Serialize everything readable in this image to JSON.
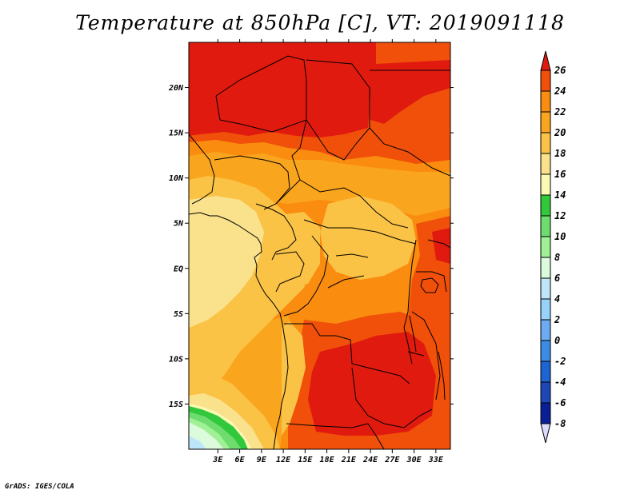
{
  "title": "Temperature at 850hPa [C], VT: 2019091118",
  "credit": "GrADS: IGES/COLA",
  "map": {
    "lon_range": [
      -1,
      35
    ],
    "lat_range": [
      -20,
      25
    ],
    "x_ticks": [
      "3E",
      "6E",
      "9E",
      "12E",
      "15E",
      "18E",
      "21E",
      "24E",
      "27E",
      "30E",
      "33E"
    ],
    "x_tick_values": [
      3,
      6,
      9,
      12,
      15,
      18,
      21,
      24,
      27,
      30,
      33
    ],
    "y_ticks": [
      "20N",
      "15N",
      "10N",
      "5N",
      "EQ",
      "5S",
      "10S",
      "15S"
    ],
    "y_tick_values": [
      20,
      15,
      10,
      5,
      0,
      -5,
      -10,
      -15
    ]
  },
  "colorbar": {
    "levels": [
      "26",
      "24",
      "22",
      "20",
      "18",
      "16",
      "14",
      "12",
      "10",
      "8",
      "6",
      "4",
      "2",
      "0",
      "-2",
      "-4",
      "-6",
      "-8"
    ],
    "colors": [
      "#e11a0f",
      "#f0500a",
      "#fa8c0f",
      "#faa51e",
      "#fac346",
      "#fae18c",
      "#fafab4",
      "#32c83c",
      "#6edc6e",
      "#a0f096",
      "#dcfadc",
      "#bee6fa",
      "#96d2fa",
      "#6eaaf0",
      "#3c8ce6",
      "#1e64d2",
      "#1e46b4",
      "#0a1e96"
    ],
    "top_color": "#e11a0f",
    "bottom_color": "#dcdcfa"
  },
  "temperature_colors": {
    "c26": "#e11a0f",
    "c24": "#f0500a",
    "c22": "#fa8c0f",
    "c20": "#faa51e",
    "c18": "#fac346",
    "c16": "#fae18c",
    "c14": "#fafab4",
    "c12": "#32c83c",
    "c10": "#6edc6e",
    "c8": "#a0f096",
    "c6": "#dcfadc",
    "c4": "#bee6fa"
  }
}
